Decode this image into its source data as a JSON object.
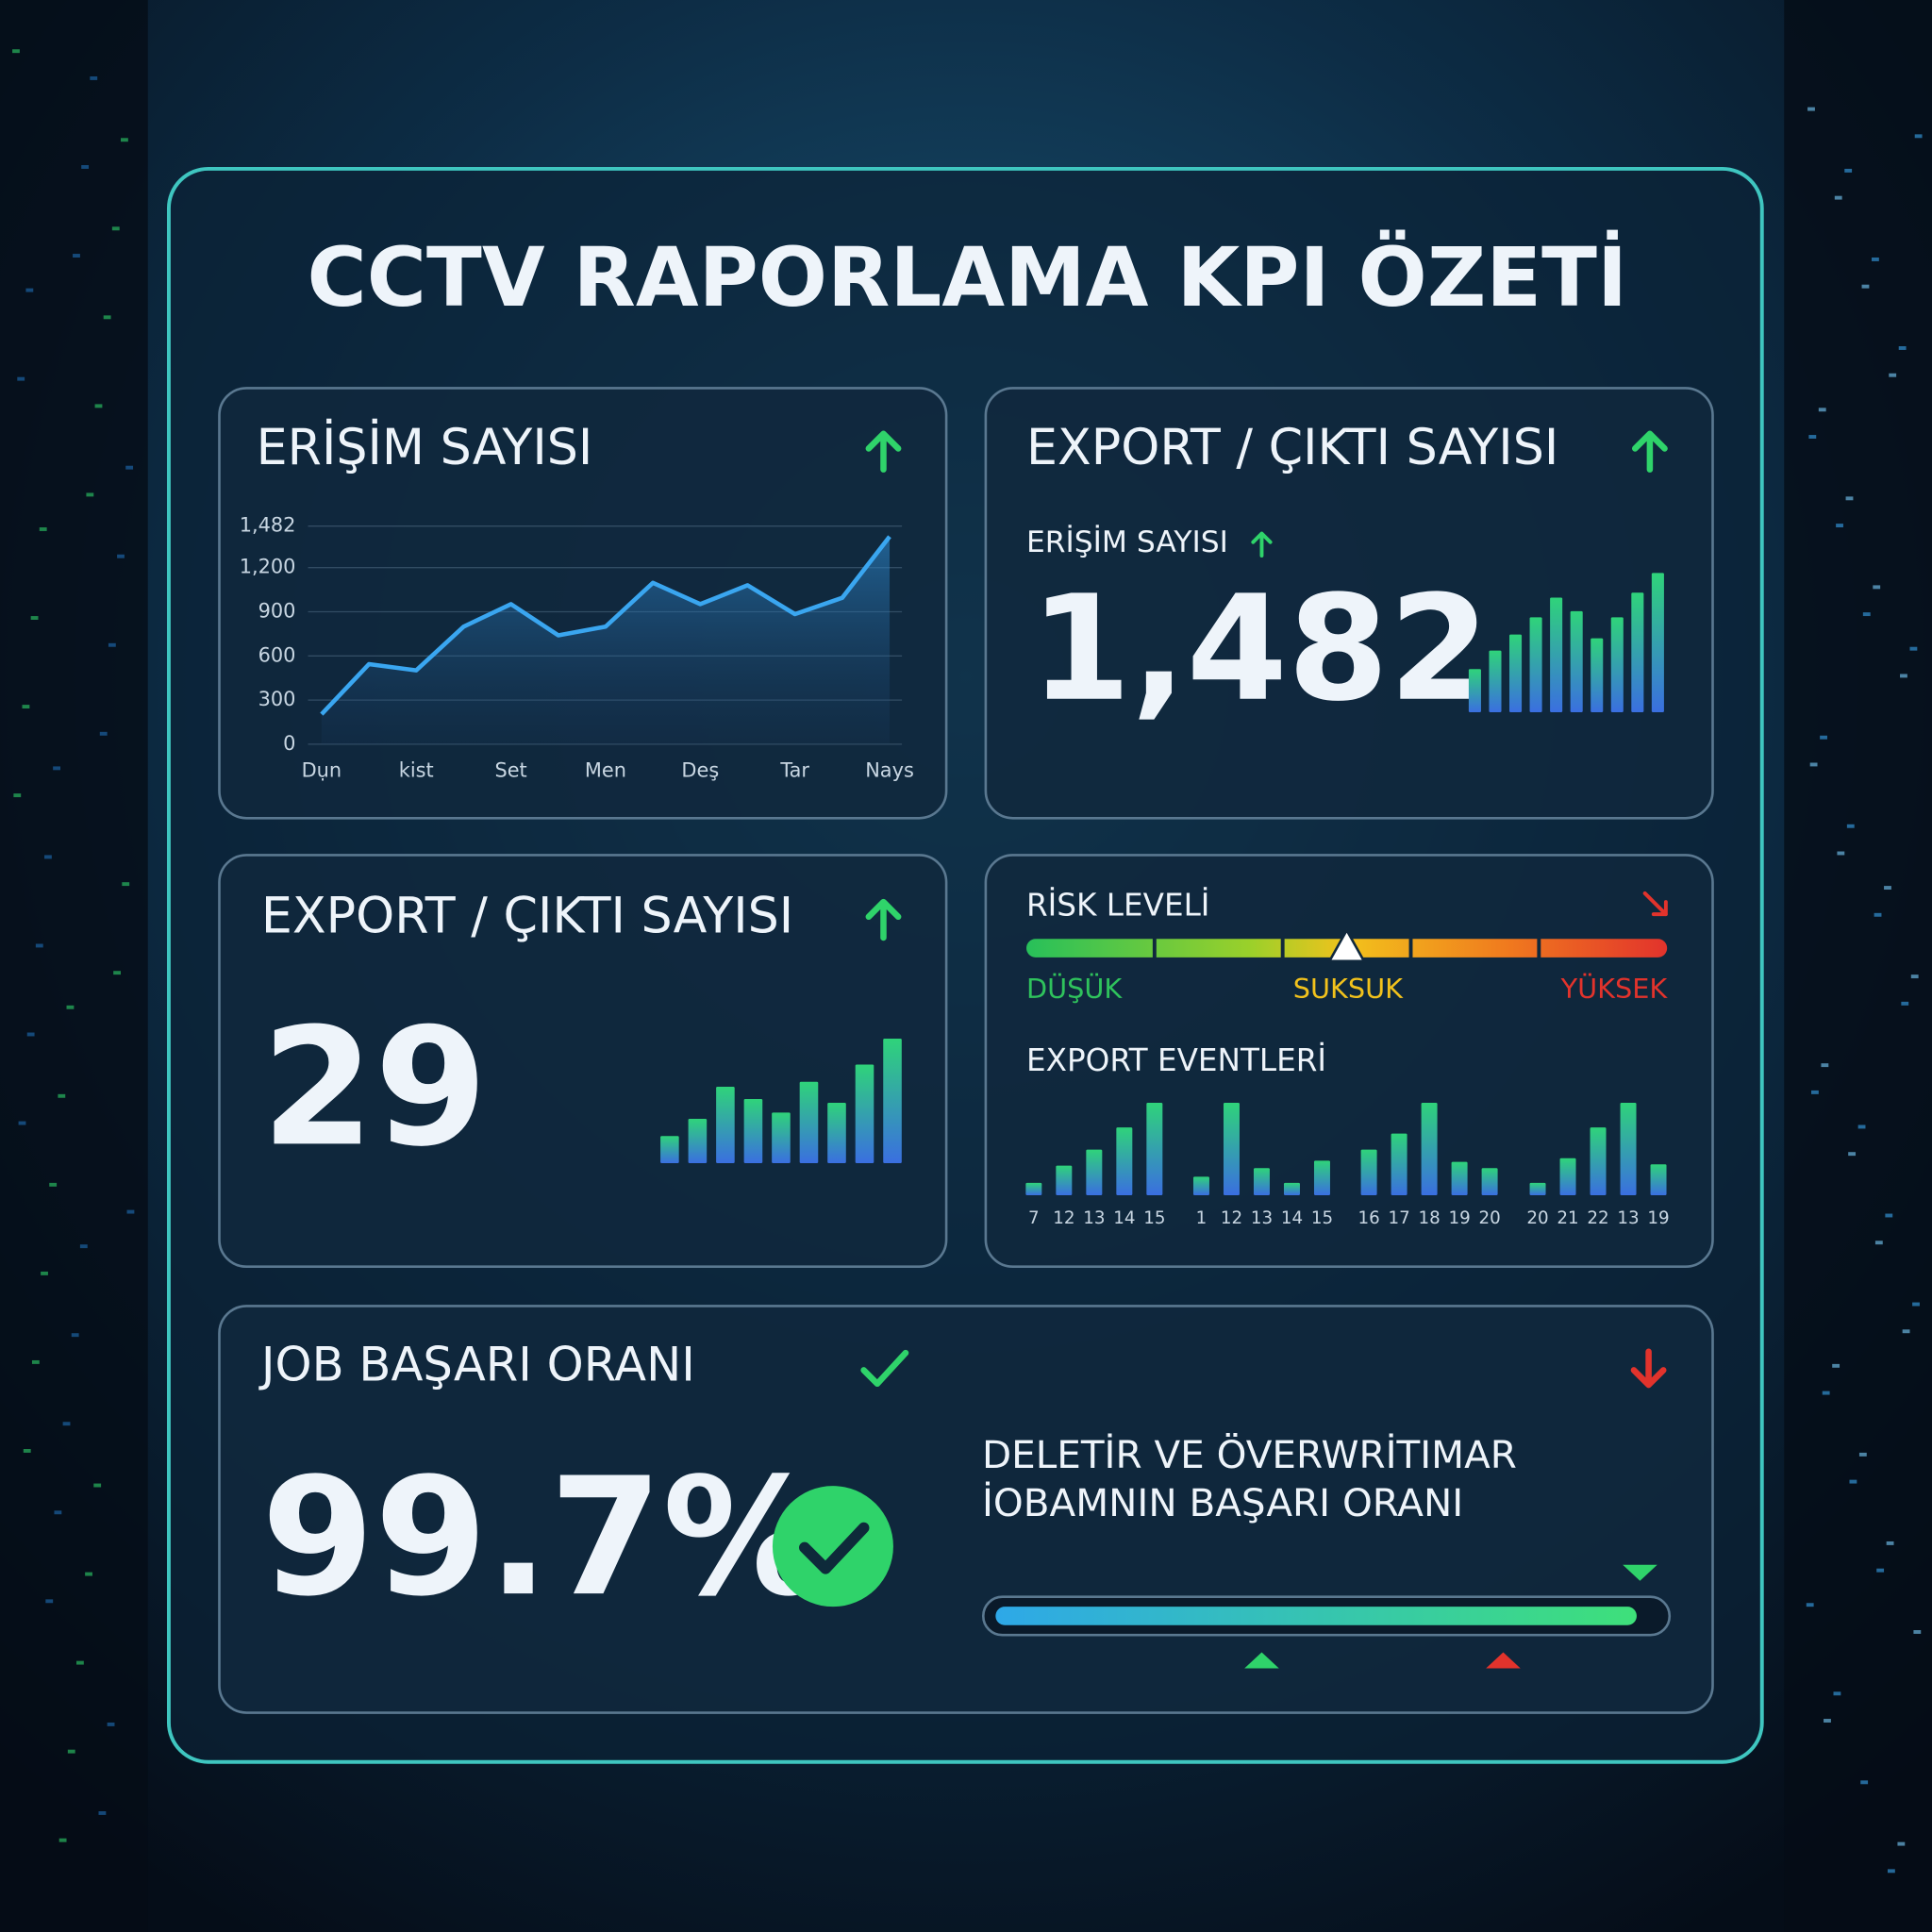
{
  "title": "CCTV RAPORLAMA KPI ÖZETİ",
  "access_chart": {
    "type": "area",
    "title": "ERİŞİM SAYISI",
    "color": "#3aa6f0",
    "x": [
      0,
      0.5,
      1,
      1.5,
      2,
      2.5,
      3,
      3.5,
      4,
      4.5,
      5,
      5.5,
      6
    ],
    "values": [
      204,
      544,
      502,
      799,
      952,
      740,
      799,
      1097,
      952,
      1080,
      884,
      995,
      1411
    ],
    "xlim": [
      0,
      6
    ],
    "xticks": [
      {
        "value": 0,
        "label": "Dụn"
      },
      {
        "value": 1,
        "label": "kist"
      },
      {
        "value": 2,
        "label": "Set"
      },
      {
        "value": 3,
        "label": "Men"
      },
      {
        "value": 4,
        "label": "Deş"
      },
      {
        "value": 5,
        "label": "Tar"
      },
      {
        "value": 6,
        "label": "Nays"
      }
    ],
    "ylim": [
      0,
      1482
    ],
    "yticks": [
      0,
      300,
      600,
      900,
      {
        "value": 1200,
        "label": "1,200"
      },
      {
        "value": 1482,
        "label": "1,482"
      }
    ],
    "grid": true
  },
  "export_kpi": {
    "title": "EXPORT / ÇIKTI SAYISI",
    "subtitle": "ERİŞİM SAYISI",
    "value": "1,482",
    "bars": [
      35,
      50,
      63,
      77,
      93,
      82,
      60,
      77,
      97,
      113
    ]
  },
  "export_count": {
    "title": "EXPORT / ÇIKTI SAYISI",
    "value": 29,
    "bars": [
      22,
      36,
      62,
      52,
      41,
      66,
      49,
      80,
      101
    ]
  },
  "risk": {
    "title": "RİSK LEVELİ",
    "level": 50,
    "lim": [
      0,
      100
    ],
    "scale_labels": [
      "DÜŞÜK",
      "SUKSUK",
      "YÜKSEK"
    ],
    "events_title": "EXPORT EVENTLERİ",
    "categories": [
      "7",
      "12",
      "13",
      "14",
      "15",
      "1",
      "12",
      "13",
      "14",
      "15",
      "16",
      "17",
      "18",
      "19",
      "20",
      "20",
      "21",
      "22",
      "13",
      "19"
    ],
    "values": [
      10,
      24,
      37,
      55,
      75,
      15,
      75,
      22,
      10,
      28,
      37,
      50,
      75,
      27,
      22,
      10,
      30,
      55,
      75,
      25
    ]
  },
  "job": {
    "title": "JOB BAŞARI ORANI",
    "value": "99.7%",
    "description": [
      "DELETİR VE ÖVERWRİTIMAR",
      "İOBAMNIN BAŞARI ORANI"
    ],
    "progress": 96,
    "progress_lim": [
      0,
      100
    ]
  }
}
